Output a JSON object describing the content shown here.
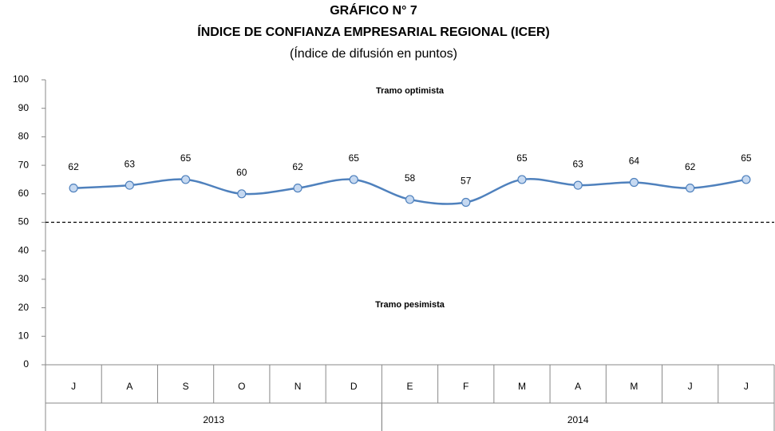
{
  "chart_data": {
    "type": "line",
    "title": "GRÁFICO N° 7",
    "subtitle": "ÍNDICE DE CONFIANZA EMPRESARIAL REGIONAL (ICER)",
    "y_label": "(Índice de difusión en puntos)",
    "categories": [
      "J",
      "A",
      "S",
      "O",
      "N",
      "D",
      "E",
      "F",
      "M",
      "A",
      "M",
      "J",
      "J"
    ],
    "groups": [
      {
        "label": "2013",
        "count": 6
      },
      {
        "label": "2014",
        "count": 7
      }
    ],
    "series": [
      {
        "name": "ICER",
        "color": "#4f81bd",
        "marker_color": "#c6d9f1",
        "values": [
          62,
          63,
          65,
          60,
          62,
          65,
          58,
          57,
          65,
          63,
          64,
          62,
          65
        ]
      }
    ],
    "ylim": [
      0,
      100
    ],
    "yticks": [
      0,
      10,
      20,
      30,
      40,
      50,
      60,
      70,
      80,
      90,
      100
    ],
    "threshold": 50,
    "annotations": [
      {
        "text": "Tramo optimista",
        "y": 96
      },
      {
        "text": "Tramo pesimista",
        "y": 21
      }
    ],
    "grid": false
  }
}
